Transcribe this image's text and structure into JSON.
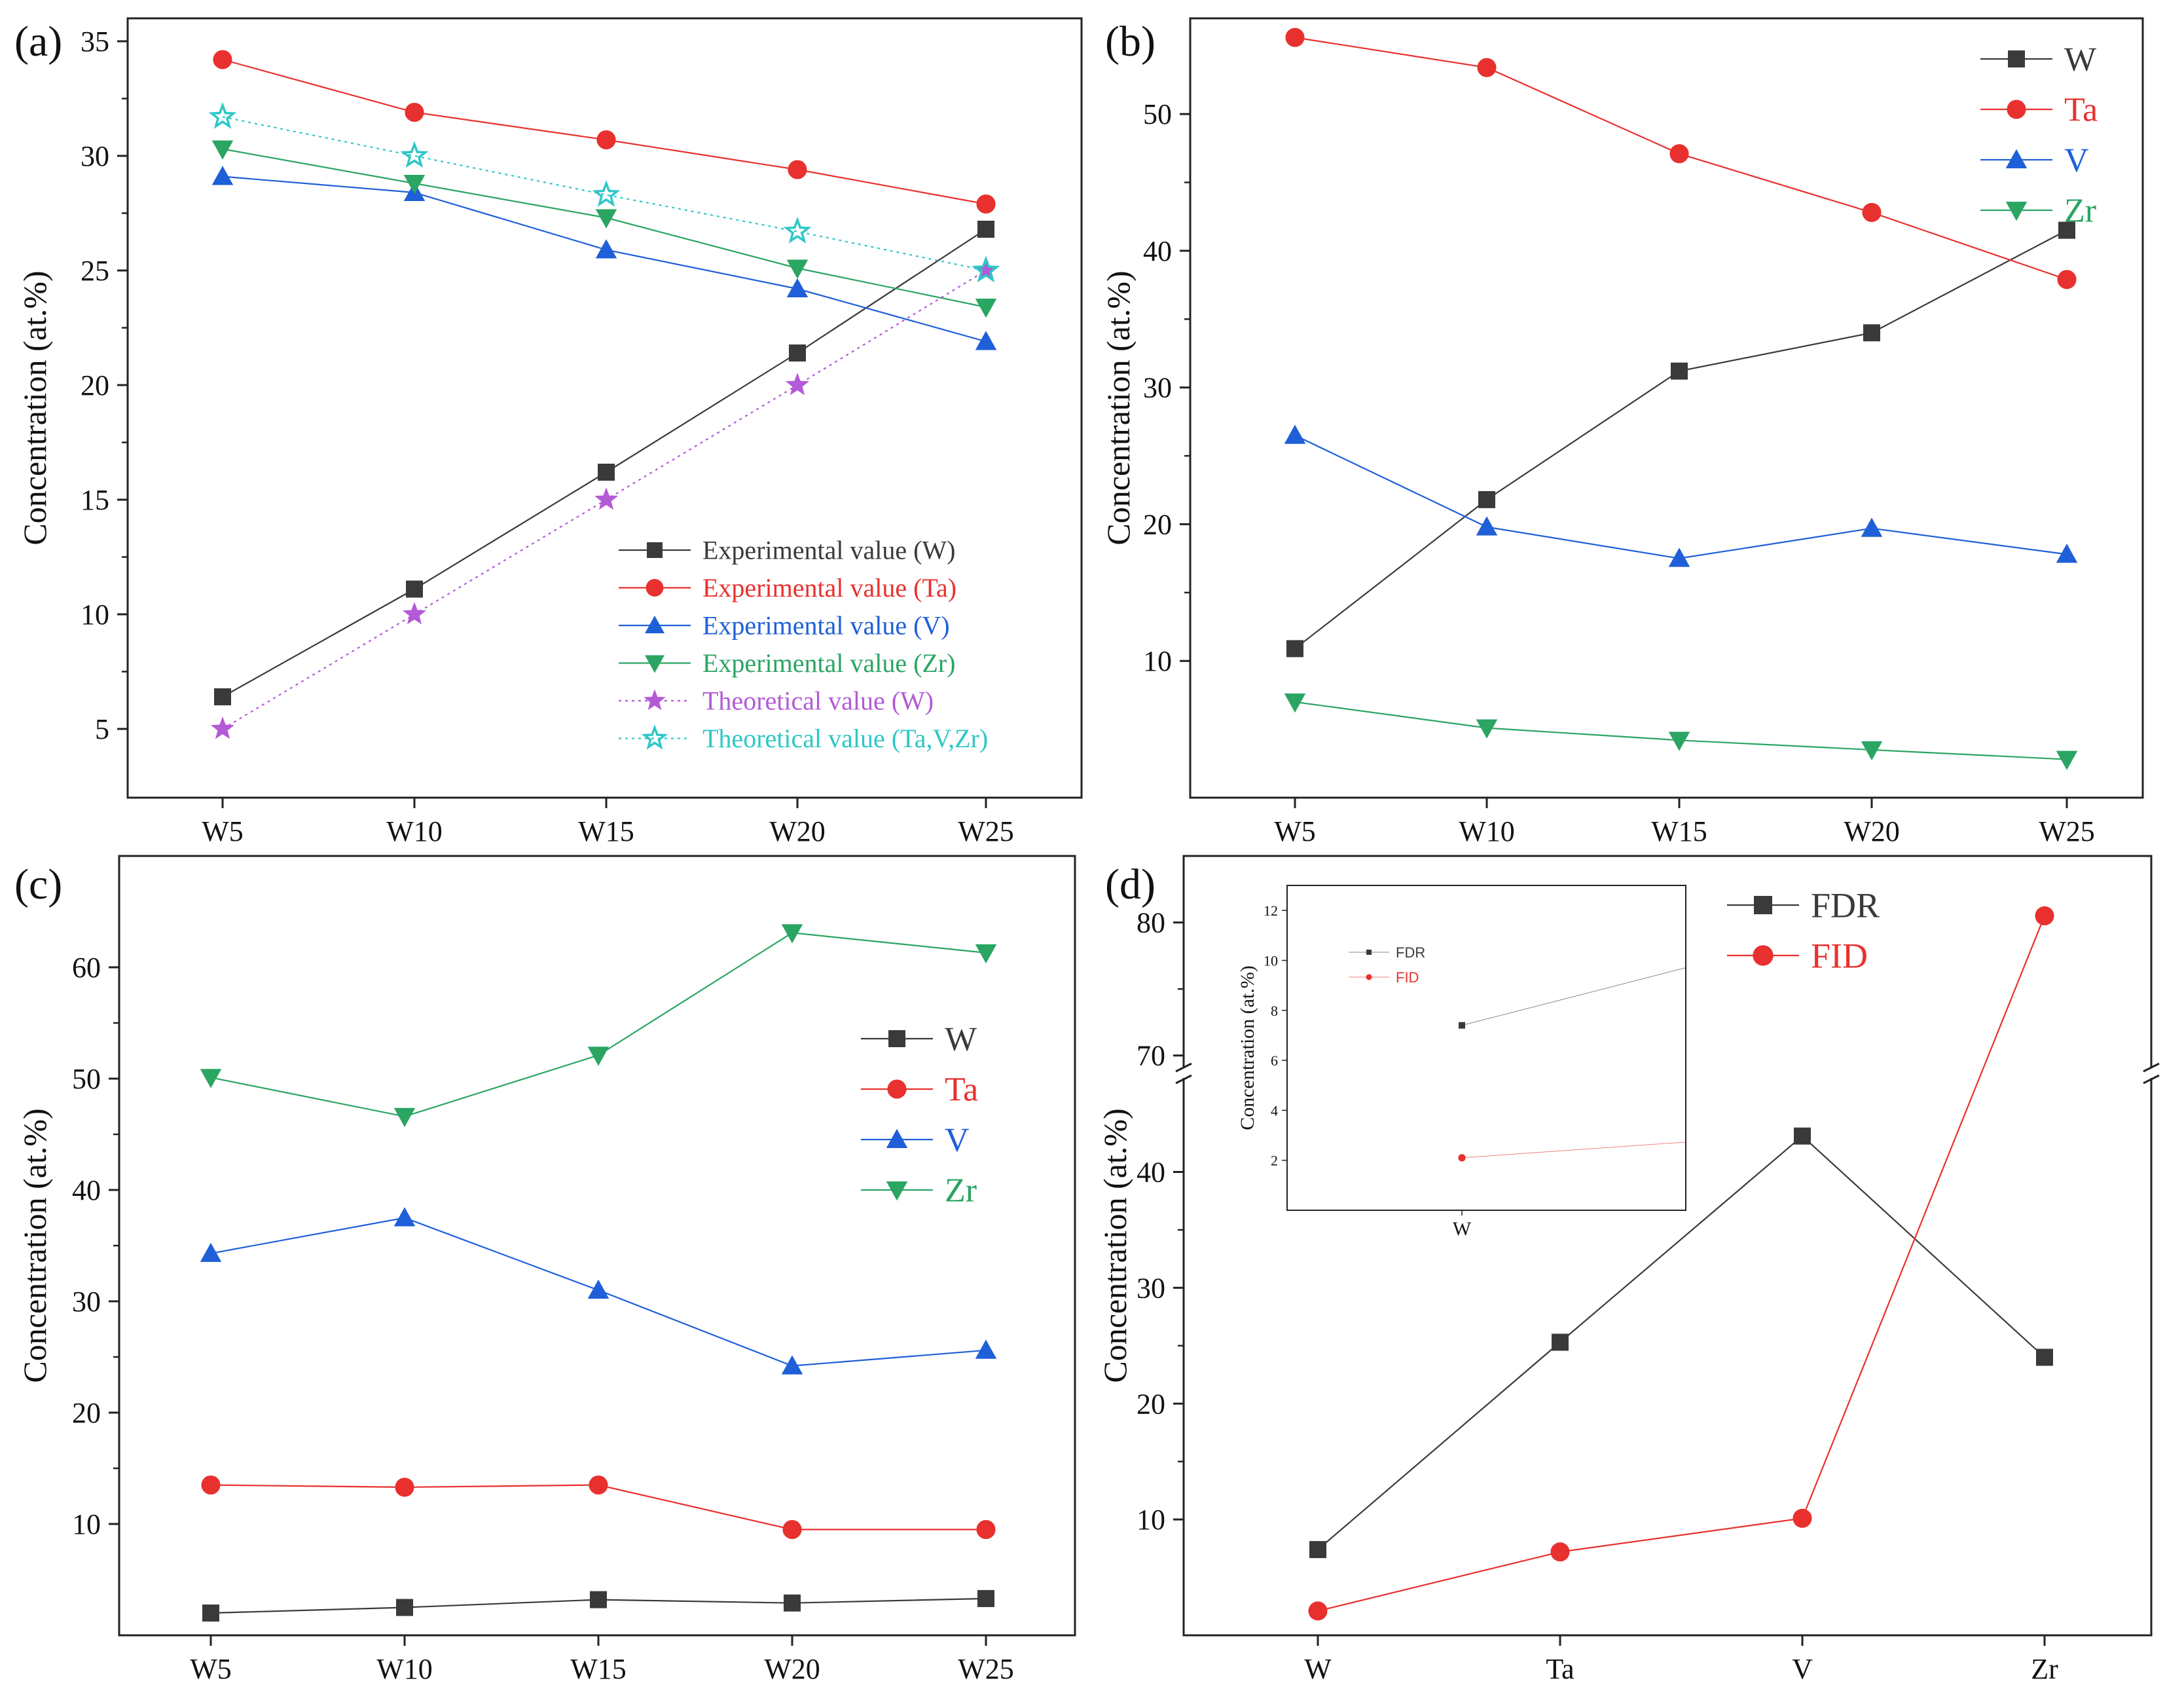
{
  "colors": {
    "W": "#3a3a3a",
    "Ta": "#e8312e",
    "V": "#1f5fd8",
    "Zr": "#2aa562",
    "theory_w": "#b35ad6",
    "theory_tvz": "#2ec7c7",
    "axis": "#222222"
  },
  "chart_data": [
    {
      "panel": "(a)",
      "type": "line",
      "categories": [
        "W5",
        "W10",
        "W15",
        "W20",
        "W25"
      ],
      "ylabel": "Concentration (at.%)",
      "ylim": [
        2,
        36
      ],
      "yticks": [
        5,
        10,
        15,
        20,
        25,
        30,
        35
      ],
      "legend_position": "bottom-right",
      "series": [
        {
          "name": "Experimental value  (W)",
          "values": [
            6.4,
            11.1,
            16.2,
            21.4,
            26.8
          ],
          "marker": "square",
          "color": "W",
          "dotted": false
        },
        {
          "name": "Experimental value  (Ta)",
          "values": [
            34.2,
            31.9,
            30.7,
            29.4,
            27.9
          ],
          "marker": "circle",
          "color": "Ta",
          "dotted": false
        },
        {
          "name": "Experimental value  (V)",
          "values": [
            29.1,
            28.4,
            25.9,
            24.2,
            21.9
          ],
          "marker": "triangle-up",
          "color": "V",
          "dotted": false
        },
        {
          "name": "Experimental value  (Zr)",
          "values": [
            30.3,
            28.8,
            27.3,
            25.1,
            23.4
          ],
          "marker": "triangle-down",
          "color": "Zr",
          "dotted": false
        },
        {
          "name": "Theoretical value       (W)",
          "values": [
            5,
            10,
            15,
            20,
            25
          ],
          "marker": "star-filled",
          "color": "theory_w",
          "dotted": true
        },
        {
          "name": "Theoretical value       (Ta,V,Zr)",
          "values": [
            31.7,
            30.0,
            28.3,
            26.7,
            25.0
          ],
          "marker": "star-open",
          "color": "theory_tvz",
          "dotted": true
        }
      ]
    },
    {
      "panel": "(b)",
      "type": "line",
      "categories": [
        "W5",
        "W10",
        "W15",
        "W20",
        "W25"
      ],
      "ylabel": "Concentration (at.%)",
      "ylim": [
        0,
        57
      ],
      "yticks": [
        10,
        20,
        30,
        40,
        50
      ],
      "legend_position": "top-right",
      "series": [
        {
          "name": "W",
          "values": [
            10.9,
            21.8,
            31.2,
            34.0,
            41.5
          ],
          "marker": "square",
          "color": "W"
        },
        {
          "name": "Ta",
          "values": [
            55.6,
            53.4,
            47.1,
            42.8,
            37.9
          ],
          "marker": "circle",
          "color": "Ta"
        },
        {
          "name": "V",
          "values": [
            26.5,
            19.8,
            17.5,
            19.7,
            17.8
          ],
          "marker": "triangle-up",
          "color": "V"
        },
        {
          "name": "Zr",
          "values": [
            7.0,
            5.1,
            4.2,
            3.5,
            2.8
          ],
          "marker": "triangle-down",
          "color": "Zr"
        }
      ]
    },
    {
      "panel": "(c)",
      "type": "line",
      "categories": [
        "W5",
        "W10",
        "W15",
        "W20",
        "W25"
      ],
      "ylabel": "Concentration (at.%)",
      "ylim": [
        0,
        70
      ],
      "yticks": [
        10,
        20,
        30,
        40,
        50,
        60
      ],
      "legend_position": "center-right",
      "series": [
        {
          "name": "W",
          "values": [
            2.0,
            2.5,
            3.2,
            2.9,
            3.3
          ],
          "marker": "square",
          "color": "W"
        },
        {
          "name": "Ta",
          "values": [
            13.5,
            13.3,
            13.5,
            9.5,
            9.5
          ],
          "marker": "circle",
          "color": "Ta"
        },
        {
          "name": "V",
          "values": [
            34.3,
            37.5,
            31.0,
            24.2,
            25.6
          ],
          "marker": "triangle-up",
          "color": "V"
        },
        {
          "name": "Zr",
          "values": [
            50.1,
            46.6,
            52.1,
            63.1,
            61.3
          ],
          "marker": "triangle-down",
          "color": "Zr"
        }
      ]
    },
    {
      "panel": "(d)",
      "type": "line",
      "categories": [
        "W",
        "Ta",
        "V",
        "Zr"
      ],
      "ylabel": "Concentration (at.%)",
      "y_axis_break": {
        "lower": [
          0,
          48
        ],
        "upper": [
          69,
          85
        ]
      },
      "yticks_lower": [
        10,
        20,
        30,
        40
      ],
      "yticks_upper": [
        70,
        80
      ],
      "legend_position": "top-right",
      "series": [
        {
          "name": "FDR",
          "values": [
            7.4,
            25.3,
            43.1,
            24.0
          ],
          "marker": "square",
          "color": "W"
        },
        {
          "name": "FID",
          "values": [
            2.1,
            7.2,
            10.1,
            80.5
          ],
          "marker": "circle",
          "color": "Ta"
        }
      ],
      "inset": {
        "categories": [
          "W"
        ],
        "ylabel": "Concentration (at.%)",
        "ylim": [
          0,
          13
        ],
        "yticks": [
          2,
          4,
          6,
          8,
          10,
          12
        ],
        "series": [
          {
            "name": "FDR",
            "values": [
              7.4
            ],
            "marker": "square",
            "color": "W"
          },
          {
            "name": "FID",
            "values": [
              2.1
            ],
            "marker": "circle",
            "color": "Ta"
          }
        ]
      }
    }
  ]
}
